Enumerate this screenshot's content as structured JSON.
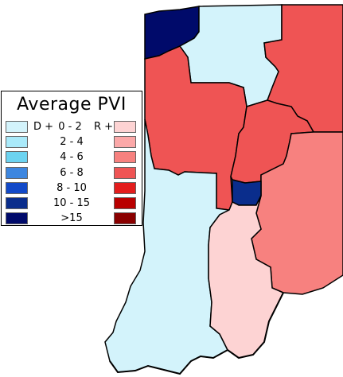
{
  "legend": {
    "title": "Average PVI",
    "d_prefix": "D +",
    "r_suffix": "R +",
    "ranges": [
      "0 - 2",
      "2 - 4",
      "4 - 6",
      "6 - 8",
      "8 - 10",
      "10 - 15",
      ">15"
    ],
    "dem_colors": [
      "#d3f3fb",
      "#aaeafa",
      "#6cd3f0",
      "#3d86df",
      "#1249c8",
      "#0a2d8c",
      "#000a6a"
    ],
    "rep_colors": [
      "#fdd3d3",
      "#fba8a8",
      "#f7817f",
      "#ef5454",
      "#e31d1d",
      "#b90000",
      "#8a0000"
    ]
  },
  "map": {
    "districts": [
      {
        "id": "district-1",
        "bin": "D >15"
      },
      {
        "id": "district-2",
        "bin": "D 0-2"
      },
      {
        "id": "district-3",
        "bin": "R 6-8"
      },
      {
        "id": "district-4",
        "bin": "R 6-8"
      },
      {
        "id": "district-5",
        "bin": "R 6-8"
      },
      {
        "id": "district-6",
        "bin": "R 4-6"
      },
      {
        "id": "district-7",
        "bin": "D 10-15"
      },
      {
        "id": "district-8",
        "bin": "D 0-2"
      },
      {
        "id": "district-9",
        "bin": "R 0-2"
      }
    ]
  }
}
